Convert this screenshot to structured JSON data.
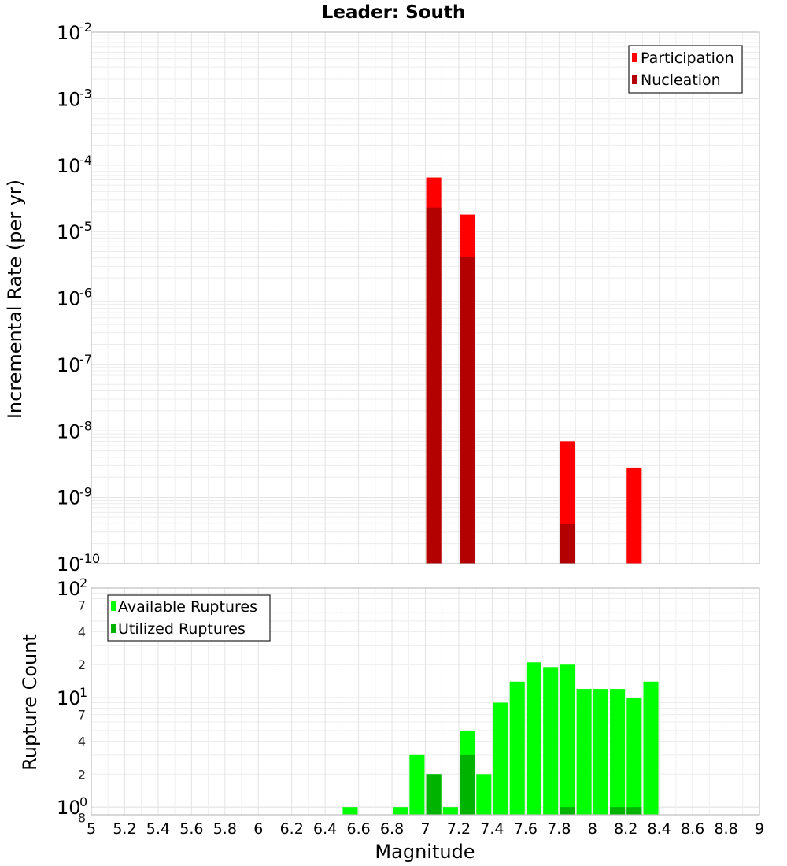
{
  "chart_data": [
    {
      "type": "bar",
      "title": "Leader: South",
      "xlabel": "",
      "ylabel": "Incremental Rate (per yr)",
      "yscale": "log",
      "xlim": [
        5,
        9
      ],
      "ylim": [
        1e-10,
        0.01
      ],
      "y_major_ticks": [
        {
          "base": "10",
          "exp": "-10",
          "value": 1e-10
        },
        {
          "base": "10",
          "exp": "-9",
          "value": 1e-09
        },
        {
          "base": "10",
          "exp": "-8",
          "value": 1e-08
        },
        {
          "base": "10",
          "exp": "-7",
          "value": 1e-07
        },
        {
          "base": "10",
          "exp": "-6",
          "value": 1e-06
        },
        {
          "base": "10",
          "exp": "-5",
          "value": 1e-05
        },
        {
          "base": "10",
          "exp": "-4",
          "value": 0.0001
        },
        {
          "base": "10",
          "exp": "-3",
          "value": 0.001
        },
        {
          "base": "10",
          "exp": "-2",
          "value": 0.01
        }
      ],
      "grid": true,
      "legend_position": "top-right",
      "series": [
        {
          "name": "Participation",
          "color": "#ff0000",
          "x": [
            7.05,
            7.25,
            7.85,
            8.25
          ],
          "values": [
            6.5e-05,
            1.8e-05,
            7e-09,
            2.8e-09
          ]
        },
        {
          "name": "Nucleation",
          "color": "#b30000",
          "x": [
            7.05,
            7.25,
            7.85
          ],
          "values": [
            2.3e-05,
            4.2e-06,
            4e-10
          ]
        }
      ]
    },
    {
      "type": "bar",
      "title": "",
      "xlabel": "Magnitude",
      "ylabel": "Rupture Count",
      "yscale": "log",
      "xlim": [
        5,
        9
      ],
      "ylim": [
        0.85,
        100
      ],
      "x_ticks": [
        "5",
        "5.2",
        "5.4",
        "5.6",
        "5.8",
        "6",
        "6.2",
        "6.4",
        "6.6",
        "6.8",
        "7",
        "7.2",
        "7.4",
        "7.6",
        "7.8",
        "8",
        "8.2",
        "8.4",
        "8.6",
        "8.8",
        "9"
      ],
      "y_major_ticks": [
        {
          "base": "10",
          "exp": "2",
          "value": 100
        },
        {
          "base": "10",
          "exp": "1",
          "value": 10
        },
        {
          "base": "10",
          "exp": "0",
          "value": 1
        }
      ],
      "y_minor_ticks": [
        {
          "label": "7",
          "value": 70
        },
        {
          "label": "4",
          "value": 40
        },
        {
          "label": "2",
          "value": 20
        },
        {
          "label": "7",
          "value": 7
        },
        {
          "label": "4",
          "value": 4
        },
        {
          "label": "2",
          "value": 2
        },
        {
          "label": "8",
          "value": 0.8
        }
      ],
      "grid": true,
      "legend_position": "top-left",
      "series": [
        {
          "name": "Available Ruptures",
          "color": "#00ff00",
          "x": [
            6.55,
            6.85,
            6.95,
            7.05,
            7.15,
            7.25,
            7.35,
            7.45,
            7.55,
            7.65,
            7.75,
            7.85,
            7.95,
            8.05,
            8.15,
            8.25,
            8.35
          ],
          "values": [
            1,
            1,
            3,
            2,
            1,
            5,
            2,
            9,
            14,
            21,
            19,
            20,
            12,
            12,
            12,
            10,
            14
          ]
        },
        {
          "name": "Utilized Ruptures",
          "color": "#00b300",
          "x": [
            7.05,
            7.25,
            7.85,
            8.15,
            8.25
          ],
          "values": [
            2,
            3,
            1,
            1,
            1
          ]
        }
      ]
    }
  ]
}
